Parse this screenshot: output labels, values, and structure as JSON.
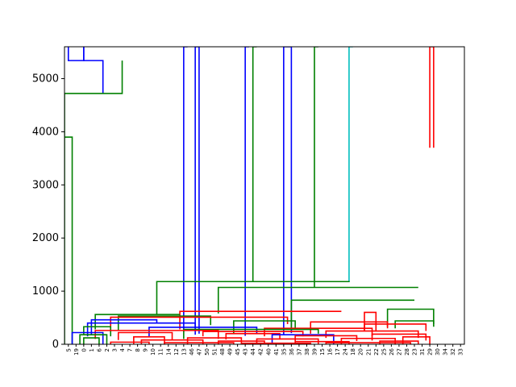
{
  "chart_data": {
    "type": "dendrogram",
    "title": "",
    "xlabel": "",
    "ylabel": "",
    "ylim": [
      0,
      5600
    ],
    "y_ticks": [
      0,
      1000,
      2000,
      3000,
      4000,
      5000
    ],
    "leaf_labels": [
      "5",
      "19",
      "0",
      "1",
      "6",
      "2",
      "3",
      "4",
      "7",
      "8",
      "9",
      "10",
      "11",
      "14",
      "12",
      "13",
      "46",
      "47",
      "50",
      "51",
      "48",
      "49",
      "45",
      "43",
      "44",
      "42",
      "40",
      "41",
      "35",
      "36",
      "37",
      "38",
      "39",
      "15",
      "16",
      "17",
      "24",
      "18",
      "20",
      "21",
      "22",
      "25",
      "26",
      "27",
      "28",
      "23",
      "31",
      "29",
      "30",
      "34",
      "32",
      "33"
    ],
    "colors": {
      "blue": "#0000ff",
      "green": "#008000",
      "red": "#ff0000",
      "cyan": "#00bfbf",
      "axis": "#000000"
    },
    "links": [
      {
        "color": "blue",
        "x1": 5,
        "x2": 25,
        "y": 5340,
        "yl": 5600,
        "yr": 5600
      },
      {
        "color": "blue",
        "x1": 25,
        "x2": 50,
        "y": 5340,
        "yl": 5600,
        "yr": 4720
      },
      {
        "color": "green",
        "x1": 0,
        "x2": 75,
        "y": 4720,
        "yl": 3900,
        "yr": 5340
      },
      {
        "color": "green",
        "x1": 0,
        "x2": 10,
        "y": 3900,
        "yl": 0,
        "yr": 0
      },
      {
        "color": "blue",
        "x1": 155,
        "x2": 160,
        "y": 5600,
        "yl": 230,
        "yr": 5600
      },
      {
        "color": "blue",
        "x1": 170,
        "x2": 175,
        "y": 5600,
        "yl": 180,
        "yr": 200
      },
      {
        "color": "blue",
        "x1": 235,
        "x2": 240,
        "y": 5600,
        "yl": 160,
        "yr": 5600
      },
      {
        "color": "blue",
        "x1": 285,
        "x2": 295,
        "y": 5600,
        "yl": 170,
        "yr": 210
      },
      {
        "color": "green",
        "x1": 245,
        "x2": 250,
        "y": 5600,
        "yl": 1180,
        "yr": 5600
      },
      {
        "color": "green",
        "x1": 325,
        "x2": 330,
        "y": 5600,
        "yl": 1070,
        "yr": 5600
      },
      {
        "color": "cyan",
        "x1": 370,
        "x2": 375,
        "y": 5600,
        "yl": 1170,
        "yr": 5600
      },
      {
        "color": "red",
        "x1": 475,
        "x2": 480,
        "y": 5600,
        "yl": 3700,
        "yr": 3700
      },
      {
        "color": "green",
        "x1": 120,
        "x2": 370,
        "y": 1180,
        "yl": 570,
        "yr": 1170
      },
      {
        "color": "green",
        "x1": 200,
        "x2": 460,
        "y": 1070,
        "yl": 580,
        "yr": 1070
      },
      {
        "color": "green",
        "x1": 295,
        "x2": 455,
        "y": 830,
        "yl": 300,
        "yr": 830
      },
      {
        "color": "green",
        "x1": 420,
        "x2": 480,
        "y": 660,
        "yl": 330,
        "yr": 330
      },
      {
        "color": "red",
        "x1": 150,
        "x2": 360,
        "y": 620,
        "yl": 280,
        "yr": 620
      },
      {
        "color": "red",
        "x1": 390,
        "x2": 405,
        "y": 600,
        "yl": 240,
        "yr": 240
      },
      {
        "color": "green",
        "x1": 40,
        "x2": 150,
        "y": 560,
        "yl": 280,
        "yr": 560
      },
      {
        "color": "green",
        "x1": 70,
        "x2": 190,
        "y": 530,
        "yl": 250,
        "yr": 360
      },
      {
        "color": "red",
        "x1": 60,
        "x2": 290,
        "y": 510,
        "yl": 250,
        "yr": 380
      },
      {
        "color": "blue",
        "x1": 35,
        "x2": 120,
        "y": 460,
        "yl": 180,
        "yr": 410
      },
      {
        "color": "green",
        "x1": 220,
        "x2": 300,
        "y": 440,
        "yl": 200,
        "yr": 300
      },
      {
        "color": "red",
        "x1": 320,
        "x2": 420,
        "y": 420,
        "yl": 200,
        "yr": 300
      },
      {
        "color": "green",
        "x1": 430,
        "x2": 480,
        "y": 440,
        "yl": 300,
        "yr": 380
      },
      {
        "color": "blue",
        "x1": 30,
        "x2": 170,
        "y": 400,
        "yl": 150,
        "yr": 300
      },
      {
        "color": "red",
        "x1": 390,
        "x2": 470,
        "y": 380,
        "yl": 250,
        "yr": 250
      },
      {
        "color": "green",
        "x1": 25,
        "x2": 60,
        "y": 330,
        "yl": 180,
        "yr": 150
      },
      {
        "color": "blue",
        "x1": 110,
        "x2": 250,
        "y": 320,
        "yl": 130,
        "yr": 200
      },
      {
        "color": "red",
        "x1": 260,
        "x2": 400,
        "y": 300,
        "yl": 150,
        "yr": 150
      },
      {
        "color": "green",
        "x1": 155,
        "x2": 330,
        "y": 280,
        "yl": 100,
        "yr": 200
      },
      {
        "color": "red",
        "x1": 40,
        "x2": 200,
        "y": 260,
        "yl": 100,
        "yr": 100
      },
      {
        "color": "blue",
        "x1": 10,
        "x2": 50,
        "y": 220,
        "yl": 0,
        "yr": 0
      },
      {
        "color": "red",
        "x1": 180,
        "x2": 310,
        "y": 240,
        "yl": 150,
        "yr": 150
      },
      {
        "color": "red",
        "x1": 340,
        "x2": 460,
        "y": 250,
        "yl": 120,
        "yr": 120
      },
      {
        "color": "green",
        "x1": 20,
        "x2": 55,
        "y": 180,
        "yl": 0,
        "yr": 0
      },
      {
        "color": "red",
        "x1": 70,
        "x2": 140,
        "y": 220,
        "yl": 80,
        "yr": 80
      },
      {
        "color": "red",
        "x1": 210,
        "x2": 280,
        "y": 200,
        "yl": 90,
        "yr": 90
      },
      {
        "color": "blue",
        "x1": 270,
        "x2": 350,
        "y": 180,
        "yl": 0,
        "yr": 0
      },
      {
        "color": "red",
        "x1": 300,
        "x2": 380,
        "y": 160,
        "yl": 60,
        "yr": 60
      },
      {
        "color": "red",
        "x1": 400,
        "x2": 470,
        "y": 190,
        "yl": 70,
        "yr": 70
      },
      {
        "color": "red",
        "x1": 440,
        "x2": 475,
        "y": 140,
        "yl": 0,
        "yr": 0
      },
      {
        "color": "green",
        "x1": 25,
        "x2": 45,
        "y": 120,
        "yl": 0,
        "yr": 0
      },
      {
        "color": "red",
        "x1": 90,
        "x2": 130,
        "y": 140,
        "yl": 0,
        "yr": 0
      },
      {
        "color": "red",
        "x1": 160,
        "x2": 230,
        "y": 120,
        "yl": 0,
        "yr": 0
      },
      {
        "color": "red",
        "x1": 250,
        "x2": 330,
        "y": 100,
        "yl": 0,
        "yr": 0
      },
      {
        "color": "red",
        "x1": 360,
        "x2": 430,
        "y": 110,
        "yl": 0,
        "yr": 0
      },
      {
        "color": "red",
        "x1": 100,
        "x2": 180,
        "y": 80,
        "yl": 0,
        "yr": 0
      },
      {
        "color": "red",
        "x1": 200,
        "x2": 260,
        "y": 60,
        "yl": 0,
        "yr": 0
      },
      {
        "color": "red",
        "x1": 300,
        "x2": 370,
        "y": 50,
        "yl": 0,
        "yr": 0
      },
      {
        "color": "red",
        "x1": 410,
        "x2": 460,
        "y": 60,
        "yl": 0,
        "yr": 0
      },
      {
        "color": "red",
        "x1": 60,
        "x2": 110,
        "y": 40,
        "yl": 0,
        "yr": 0
      },
      {
        "color": "red",
        "x1": 130,
        "x2": 220,
        "y": 30,
        "yl": 0,
        "yr": 0
      },
      {
        "color": "red",
        "x1": 230,
        "x2": 320,
        "y": 20,
        "yl": 0,
        "yr": 0
      },
      {
        "color": "red",
        "x1": 340,
        "x2": 450,
        "y": 30,
        "yl": 0,
        "yr": 0
      }
    ]
  }
}
